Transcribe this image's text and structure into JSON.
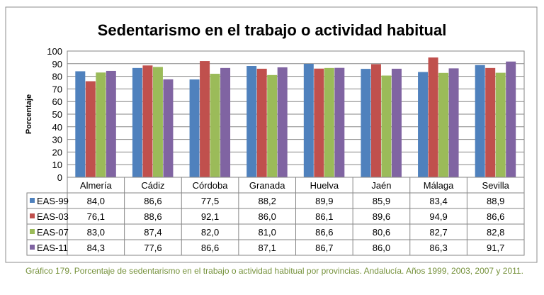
{
  "chart_data": {
    "type": "bar",
    "title": "Sedentarismo en el trabajo o actividad habitual",
    "ylabel": "Porcentaje",
    "xlabel": "",
    "ylim": [
      0,
      100
    ],
    "yticks": [
      0,
      10,
      20,
      30,
      40,
      50,
      60,
      70,
      80,
      90,
      100
    ],
    "grid": true,
    "legend": "data-table",
    "categories": [
      "Almería",
      "Cádiz",
      "Córdoba",
      "Granada",
      "Huelva",
      "Jaén",
      "Málaga",
      "Sevilla"
    ],
    "series": [
      {
        "name": "EAS-99",
        "color": "#4F81BD",
        "values": [
          84.0,
          86.6,
          77.5,
          88.2,
          89.9,
          85.9,
          83.4,
          88.9
        ],
        "labels": [
          "84,0",
          "86,6",
          "77,5",
          "88,2",
          "89,9",
          "85,9",
          "83,4",
          "88,9"
        ]
      },
      {
        "name": "EAS-03",
        "color": "#C0504D",
        "values": [
          76.1,
          88.6,
          92.1,
          86.0,
          86.1,
          89.6,
          94.9,
          86.6
        ],
        "labels": [
          "76,1",
          "88,6",
          "92,1",
          "86,0",
          "86,1",
          "89,6",
          "94,9",
          "86,6"
        ]
      },
      {
        "name": "EAS-07",
        "color": "#9BBB59",
        "values": [
          83.0,
          87.4,
          82.0,
          81.0,
          86.6,
          80.6,
          82.7,
          82.8
        ],
        "labels": [
          "83,0",
          "87,4",
          "82,0",
          "81,0",
          "86,6",
          "80,6",
          "82,7",
          "82,8"
        ]
      },
      {
        "name": "EAS-11",
        "color": "#8064A2",
        "values": [
          84.3,
          77.6,
          86.6,
          87.1,
          86.7,
          86.0,
          86.3,
          91.7
        ],
        "labels": [
          "84,3",
          "77,6",
          "86,6",
          "87,1",
          "86,7",
          "86,0",
          "86,3",
          "91,7"
        ]
      }
    ]
  },
  "caption": "Gráfico 179. Porcentaje de sedentarismo en el trabajo o actividad habitual por provincias. Andalucía. Años 1999, 2003, 2007 y 2011."
}
